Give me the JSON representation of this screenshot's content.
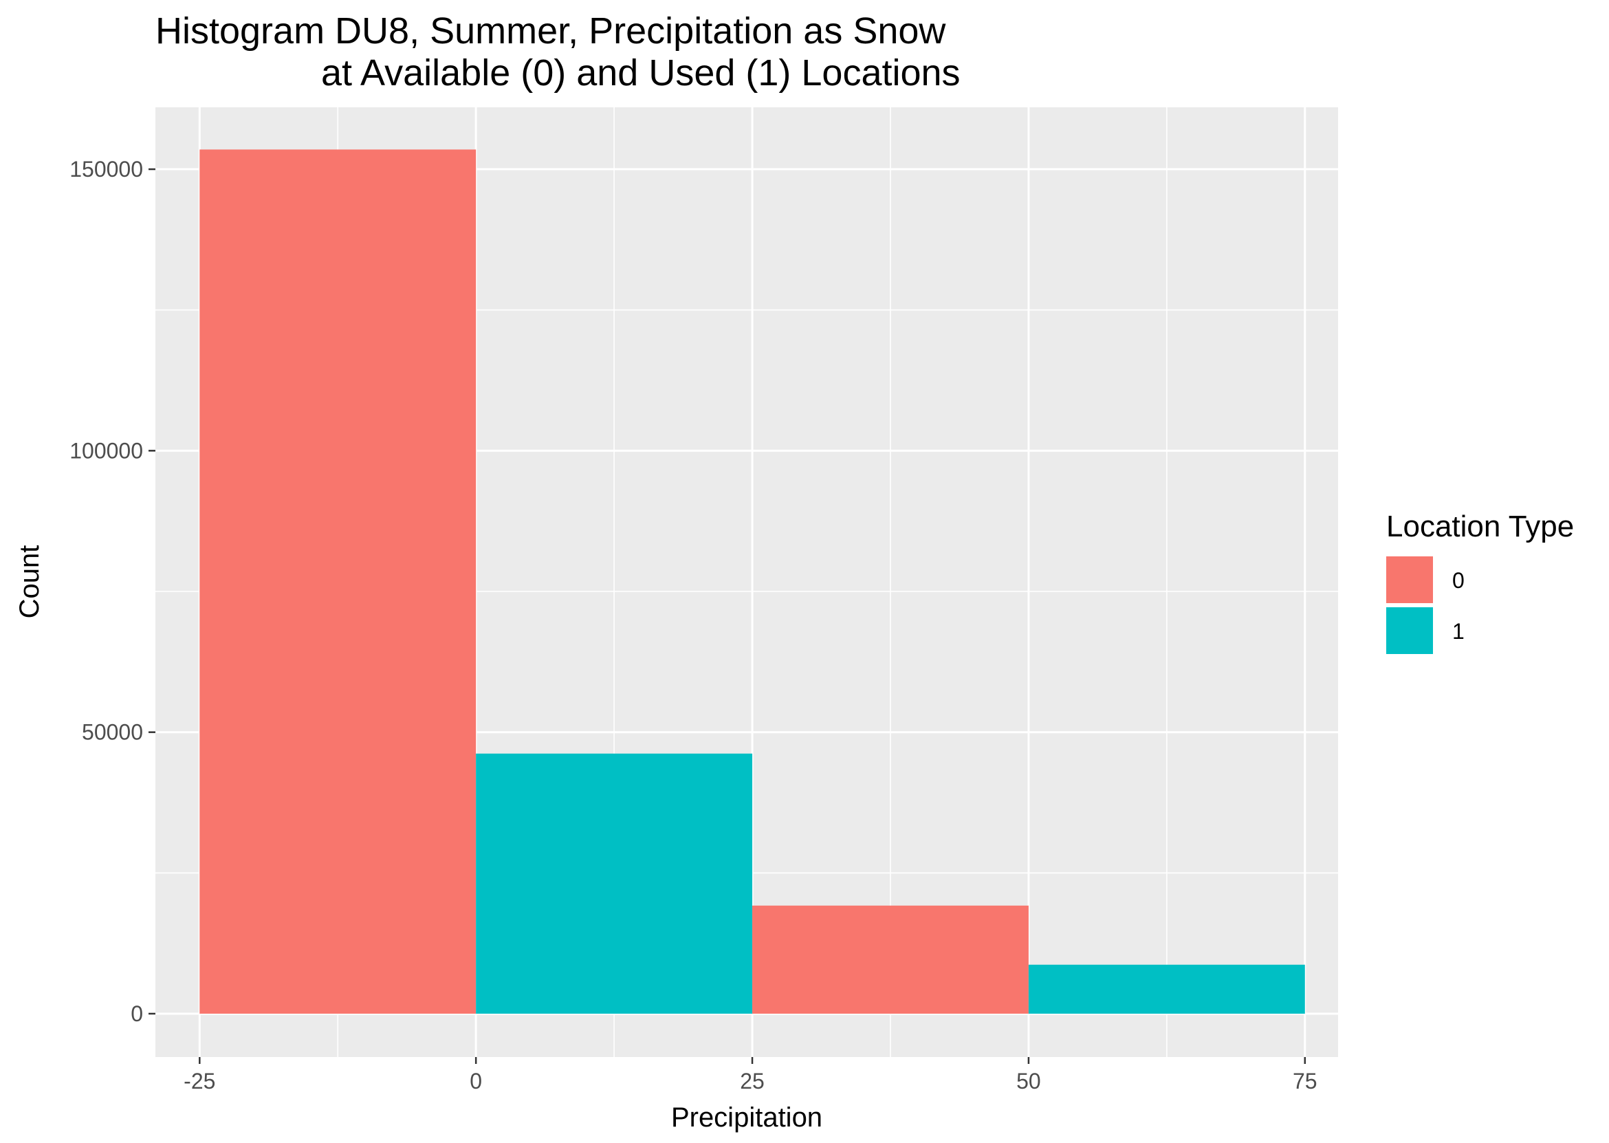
{
  "chart_data": {
    "type": "bar",
    "subtype": "histogram",
    "title_lines": [
      "Histogram DU8, Summer, Precipitation as Snow",
      "at Available (0) and Used (1) Locations"
    ],
    "xlabel": "Precipitation",
    "ylabel": "Count",
    "xlim": [
      -29,
      78
    ],
    "ylim": [
      -7700,
      161000
    ],
    "x_ticks": [
      -25,
      0,
      25,
      50,
      75
    ],
    "x_tick_labels": [
      "-25",
      "0",
      "25",
      "50",
      "75"
    ],
    "y_ticks": [
      0,
      50000,
      100000,
      150000
    ],
    "y_tick_labels": [
      "0",
      "50000",
      "100000",
      "150000"
    ],
    "bins": [
      {
        "x0": -25,
        "x1": 0,
        "count": 153500,
        "series": "0"
      },
      {
        "x0": 0,
        "x1": 25,
        "count": 46200,
        "series": "1"
      },
      {
        "x0": 25,
        "x1": 50,
        "count": 19200,
        "series": "0"
      },
      {
        "x0": 50,
        "x1": 75,
        "count": 8700,
        "series": "1"
      }
    ],
    "legend": {
      "title": "Location Type",
      "position": "right",
      "entries": [
        {
          "label": "0",
          "color": "#F8766D"
        },
        {
          "label": "1",
          "color": "#00BFC4"
        }
      ]
    },
    "panel_background": "#EBEBEB",
    "grid_color": "#FFFFFF"
  }
}
